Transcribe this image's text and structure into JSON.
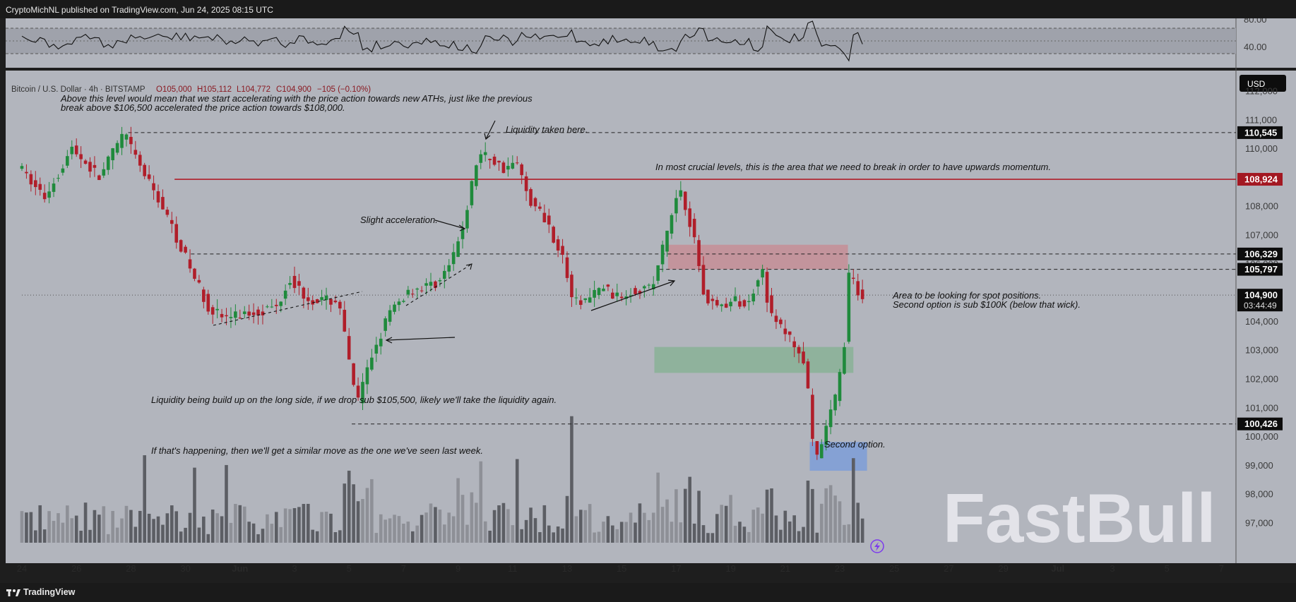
{
  "header": {
    "published": "CryptoMichNL published on TradingView.com, Jun 24, 2025 08:15 UTC"
  },
  "footer": {
    "brand": "TradingView"
  },
  "watermark": "FastBull",
  "legend": {
    "title": "Bitcoin / U.S. Dollar · 4h · BITSTAMP",
    "open": "O105,000",
    "high": "H105,112",
    "low": "L104,772",
    "close": "C104,900",
    "change": "−105 (−0.10%)"
  },
  "currency": "USD",
  "colors": {
    "up": "#1f8a3c",
    "down": "#b01e2a",
    "panel": "#b2b5bd",
    "resistance": "#b01e2a"
  },
  "chart_data": {
    "type": "candlestick",
    "symbol": "Bitcoin / U.S. Dollar",
    "interval": "4h",
    "exchange": "BITSTAMP",
    "ylim": [
      96300,
      112700
    ],
    "y_ticks": [
      "112,000",
      "111,000",
      "110,000",
      "109,000",
      "108,000",
      "107,000",
      "106,000",
      "105,000",
      "104,000",
      "103,000",
      "102,000",
      "101,000",
      "100,000",
      "99,000",
      "98,000",
      "97,000"
    ],
    "x_ticks": [
      "24",
      "26",
      "28",
      "30",
      "Jun",
      "3",
      "5",
      "7",
      "9",
      "11",
      "13",
      "15",
      "17",
      "19",
      "21",
      "23",
      "25",
      "27",
      "29",
      "Jul",
      "3",
      "5",
      "7"
    ],
    "price_labels": [
      {
        "text": "110,545",
        "value": 110545,
        "style": "dark"
      },
      {
        "text": "108,924",
        "value": 108924,
        "style": "red"
      },
      {
        "text": "106,329",
        "value": 106329,
        "style": "dark"
      },
      {
        "text": "105,797",
        "value": 105797,
        "style": "dark"
      },
      {
        "text": "104,900",
        "value": 104900,
        "style": "dark"
      },
      {
        "text": "100,426",
        "value": 100426,
        "style": "dark"
      }
    ],
    "countdown": "03:44:49",
    "lines": [
      {
        "type": "dashed",
        "value": 110545,
        "from_day": 27.9
      },
      {
        "type": "solid",
        "value": 108924,
        "from_day": 29.6
      },
      {
        "type": "dashed",
        "value": 106329,
        "from_day": 30.2
      },
      {
        "type": "dashed",
        "value": 105797,
        "from_day": 47.4
      },
      {
        "type": "dotted",
        "value": 104900,
        "from_day": 24
      },
      {
        "type": "dashed",
        "value": 100426,
        "from_day": 36.1
      }
    ],
    "zones": [
      {
        "name": "resistance-zone",
        "color": "#c68e97",
        "from_day": 47.7,
        "to_day": 54.3,
        "y_low": 105800,
        "y_high": 106650
      },
      {
        "name": "spot-zone",
        "color": "#88b296",
        "from_day": 47.2,
        "to_day": 54.5,
        "y_low": 102200,
        "y_high": 103100
      },
      {
        "name": "second-option-zone",
        "color": "#7d9ed8",
        "from_day": 52.9,
        "to_day": 55.0,
        "y_low": 98800,
        "y_high": 99800
      }
    ],
    "rsi": {
      "levels": [
        "80.00",
        "40.00"
      ]
    },
    "annotations": [
      "Above this level would mean that we start accelerating with the price action towards new ATHs, just like the previous",
      "break above $106,500 accelerated the price action towards $108,000.",
      "Liquidity taken here.",
      "In most crucial levels, this is the area that we need to break in order to have upwards momentum.",
      "Slight acceleration.",
      "Area to be looking for spot positions.",
      "Second option is sub $100K (below that wick).",
      "Liquidity being build up on the long side, if we drop sub $105,500, likely we'll take the liquidity again.",
      "If that's happening, then we'll get a similar move as the one we've seen last week.",
      "Second option."
    ]
  }
}
